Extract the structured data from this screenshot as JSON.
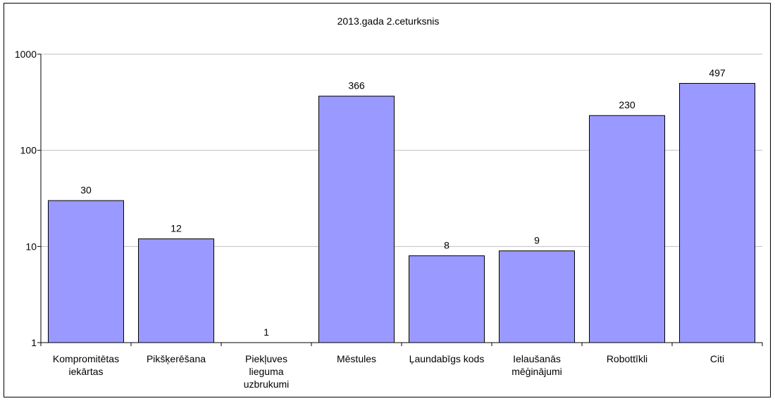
{
  "chart_data": {
    "type": "bar",
    "title": "2013.gada 2.ceturksnis",
    "xlabel": "",
    "ylabel": "",
    "yscale": "log",
    "ylim": [
      1,
      1000
    ],
    "yticks": [
      1,
      10,
      100,
      1000
    ],
    "ytick_labels": [
      "1",
      "10",
      "100",
      "1000"
    ],
    "grid": true,
    "legend": "none",
    "categories": [
      "Kompromitētas iekārtas",
      "Pikšķerēšana",
      "Piekļuves lieguma uzbrukumi",
      "Mēstules",
      "Ļaundabīgs kods",
      "Ielaušanās mēģinājumi",
      "Robottīkli",
      "Citi"
    ],
    "category_lines": [
      [
        "Kompromitētas",
        "iekārtas"
      ],
      [
        "Pikšķerēšana"
      ],
      [
        "Piekļuves",
        "lieguma",
        "uzbrukumi"
      ],
      [
        "Mēstules"
      ],
      [
        "Ļaundabīgs kods"
      ],
      [
        "Ielaušanās",
        "mēģinājumi"
      ],
      [
        "Robottīkli"
      ],
      [
        "Citi"
      ]
    ],
    "values": [
      30,
      12,
      1,
      366,
      8,
      9,
      230,
      497
    ],
    "value_labels": [
      "30",
      "12",
      "1",
      "366",
      "8",
      "9",
      "230",
      "497"
    ],
    "colors": {
      "bar": "#9999ff",
      "bar_stroke": "#000000",
      "grid": "#c0c0c0",
      "axis": "#000000"
    }
  }
}
